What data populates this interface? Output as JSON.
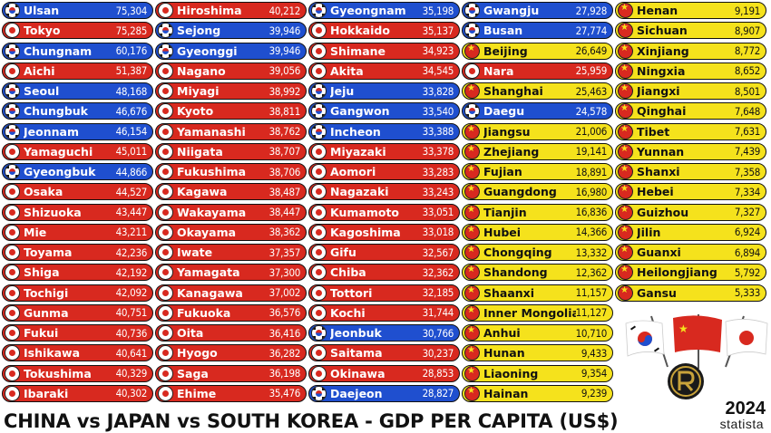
{
  "title": "CHINA vs JAPAN vs SOUTH KOREA - GDP PER CAPITA (US$)",
  "year": "2024",
  "source": "statista",
  "colors": {
    "japan": "#d8291f",
    "south_korea": "#1f4fcf",
    "china": "#f5e21c"
  },
  "chart_data": {
    "type": "table",
    "columns": [
      [
        {
          "name": "Ulsan",
          "country": "kr",
          "value": "75,304"
        },
        {
          "name": "Tokyo",
          "country": "jp",
          "value": "75,285"
        },
        {
          "name": "Chungnam",
          "country": "kr",
          "value": "60,176"
        },
        {
          "name": "Aichi",
          "country": "jp",
          "value": "51,387"
        },
        {
          "name": "Seoul",
          "country": "kr",
          "value": "48,168"
        },
        {
          "name": "Chungbuk",
          "country": "kr",
          "value": "46,676"
        },
        {
          "name": "Jeonnam",
          "country": "kr",
          "value": "46,154"
        },
        {
          "name": "Yamaguchi",
          "country": "jp",
          "value": "45,011"
        },
        {
          "name": "Gyeongbuk",
          "country": "kr",
          "value": "44,866"
        },
        {
          "name": "Osaka",
          "country": "jp",
          "value": "44,527"
        },
        {
          "name": "Shizuoka",
          "country": "jp",
          "value": "43,447"
        },
        {
          "name": "Mie",
          "country": "jp",
          "value": "43,211"
        },
        {
          "name": "Toyama",
          "country": "jp",
          "value": "42,236"
        },
        {
          "name": "Shiga",
          "country": "jp",
          "value": "42,192"
        },
        {
          "name": "Tochigi",
          "country": "jp",
          "value": "42,092"
        },
        {
          "name": "Gunma",
          "country": "jp",
          "value": "40,751"
        },
        {
          "name": "Fukui",
          "country": "jp",
          "value": "40,736"
        },
        {
          "name": "Ishikawa",
          "country": "jp",
          "value": "40,641"
        },
        {
          "name": "Tokushima",
          "country": "jp",
          "value": "40,329"
        },
        {
          "name": "Ibaraki",
          "country": "jp",
          "value": "40,302"
        }
      ],
      [
        {
          "name": "Hiroshima",
          "country": "jp",
          "value": "40,212"
        },
        {
          "name": "Sejong",
          "country": "kr",
          "value": "39,946"
        },
        {
          "name": "Gyeonggi",
          "country": "kr",
          "value": "39,946"
        },
        {
          "name": "Nagano",
          "country": "jp",
          "value": "39,056"
        },
        {
          "name": "Miyagi",
          "country": "jp",
          "value": "38,992"
        },
        {
          "name": "Kyoto",
          "country": "jp",
          "value": "38,811"
        },
        {
          "name": "Yamanashi",
          "country": "jp",
          "value": "38,762"
        },
        {
          "name": "Niigata",
          "country": "jp",
          "value": "38,707"
        },
        {
          "name": "Fukushima",
          "country": "jp",
          "value": "38,706"
        },
        {
          "name": "Kagawa",
          "country": "jp",
          "value": "38,487"
        },
        {
          "name": "Wakayama",
          "country": "jp",
          "value": "38,447"
        },
        {
          "name": "Okayama",
          "country": "jp",
          "value": "38,362"
        },
        {
          "name": "Iwate",
          "country": "jp",
          "value": "37,357"
        },
        {
          "name": "Yamagata",
          "country": "jp",
          "value": "37,300"
        },
        {
          "name": "Kanagawa",
          "country": "jp",
          "value": "37,002"
        },
        {
          "name": "Fukuoka",
          "country": "jp",
          "value": "36,576"
        },
        {
          "name": "Oita",
          "country": "jp",
          "value": "36,416"
        },
        {
          "name": "Hyogo",
          "country": "jp",
          "value": "36,282"
        },
        {
          "name": "Saga",
          "country": "jp",
          "value": "36,198"
        },
        {
          "name": "Ehime",
          "country": "jp",
          "value": "35,476"
        }
      ],
      [
        {
          "name": "Gyeongnam",
          "country": "kr",
          "value": "35,198"
        },
        {
          "name": "Hokkaido",
          "country": "jp",
          "value": "35,137"
        },
        {
          "name": "Shimane",
          "country": "jp",
          "value": "34,923"
        },
        {
          "name": "Akita",
          "country": "jp",
          "value": "34,545"
        },
        {
          "name": "Jeju",
          "country": "kr",
          "value": "33,828"
        },
        {
          "name": "Gangwon",
          "country": "kr",
          "value": "33,540"
        },
        {
          "name": "Incheon",
          "country": "kr",
          "value": "33,388"
        },
        {
          "name": "Miyazaki",
          "country": "jp",
          "value": "33,378"
        },
        {
          "name": "Aomori",
          "country": "jp",
          "value": "33,283"
        },
        {
          "name": "Nagazaki",
          "country": "jp",
          "value": "33,243"
        },
        {
          "name": "Kumamoto",
          "country": "jp",
          "value": "33,051"
        },
        {
          "name": "Kagoshima",
          "country": "jp",
          "value": "33,018"
        },
        {
          "name": "Gifu",
          "country": "jp",
          "value": "32,567"
        },
        {
          "name": "Chiba",
          "country": "jp",
          "value": "32,362"
        },
        {
          "name": "Tottori",
          "country": "jp",
          "value": "32,185"
        },
        {
          "name": "Kochi",
          "country": "jp",
          "value": "31,744"
        },
        {
          "name": "Jeonbuk",
          "country": "kr",
          "value": "30,766"
        },
        {
          "name": "Saitama",
          "country": "jp",
          "value": "30,237"
        },
        {
          "name": "Okinawa",
          "country": "jp",
          "value": "28,853"
        },
        {
          "name": "Daejeon",
          "country": "kr",
          "value": "28,827"
        }
      ],
      [
        {
          "name": "Gwangju",
          "country": "kr",
          "value": "27,928"
        },
        {
          "name": "Busan",
          "country": "kr",
          "value": "27,774"
        },
        {
          "name": "Beijing",
          "country": "cn",
          "value": "26,649"
        },
        {
          "name": "Nara",
          "country": "jp",
          "value": "25,959"
        },
        {
          "name": "Shanghai",
          "country": "cn",
          "value": "25,463"
        },
        {
          "name": "Daegu",
          "country": "kr",
          "value": "24,578"
        },
        {
          "name": "Jiangsu",
          "country": "cn",
          "value": "21,006"
        },
        {
          "name": "Zhejiang",
          "country": "cn",
          "value": "19,141"
        },
        {
          "name": "Fujian",
          "country": "cn",
          "value": "18,891"
        },
        {
          "name": "Guangdong",
          "country": "cn",
          "value": "16,980"
        },
        {
          "name": "Tianjin",
          "country": "cn",
          "value": "16,836"
        },
        {
          "name": "Hubei",
          "country": "cn",
          "value": "14,366"
        },
        {
          "name": "Chongqing",
          "country": "cn",
          "value": "13,332"
        },
        {
          "name": "Shandong",
          "country": "cn",
          "value": "12,362"
        },
        {
          "name": "Shaanxi",
          "country": "cn",
          "value": "11,157"
        },
        {
          "name": "Inner Mongolia",
          "country": "cn",
          "value": "11,127"
        },
        {
          "name": "Anhui",
          "country": "cn",
          "value": "10,710"
        },
        {
          "name": "Hunan",
          "country": "cn",
          "value": "9,433"
        },
        {
          "name": "Liaoning",
          "country": "cn",
          "value": "9,354"
        },
        {
          "name": "Hainan",
          "country": "cn",
          "value": "9,239"
        }
      ],
      [
        {
          "name": "Henan",
          "country": "cn",
          "value": "9,191"
        },
        {
          "name": "Sichuan",
          "country": "cn",
          "value": "8,907"
        },
        {
          "name": "Xinjiang",
          "country": "cn",
          "value": "8,772"
        },
        {
          "name": "Ningxia",
          "country": "cn",
          "value": "8,652"
        },
        {
          "name": "Jiangxi",
          "country": "cn",
          "value": "8,501"
        },
        {
          "name": "Qinghai",
          "country": "cn",
          "value": "7,648"
        },
        {
          "name": "Tibet",
          "country": "cn",
          "value": "7,631"
        },
        {
          "name": "Yunnan",
          "country": "cn",
          "value": "7,439"
        },
        {
          "name": "Shanxi",
          "country": "cn",
          "value": "7,358"
        },
        {
          "name": "Hebei",
          "country": "cn",
          "value": "7,334"
        },
        {
          "name": "Guizhou",
          "country": "cn",
          "value": "7,327"
        },
        {
          "name": "Jilin",
          "country": "cn",
          "value": "6,924"
        },
        {
          "name": "Guanxi",
          "country": "cn",
          "value": "6,894"
        },
        {
          "name": "Heilongjiang",
          "country": "cn",
          "value": "5,792"
        },
        {
          "name": "Gansu",
          "country": "cn",
          "value": "5,333"
        }
      ]
    ]
  }
}
